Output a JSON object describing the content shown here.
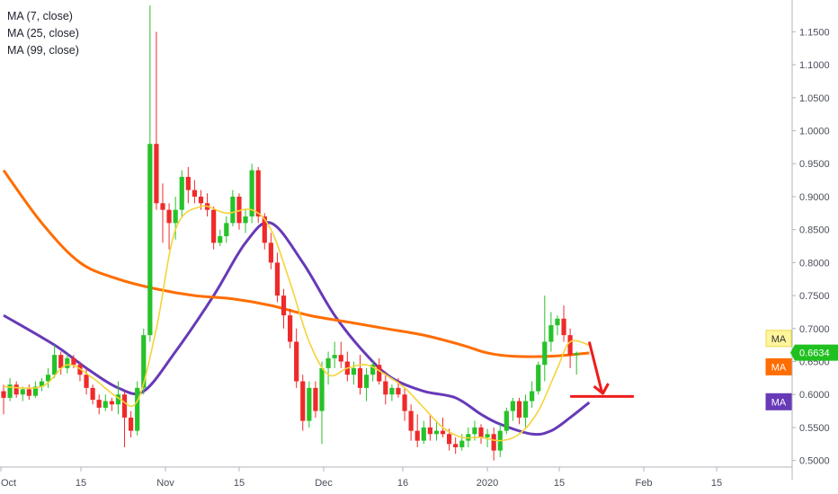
{
  "legend": [
    {
      "label": "MA (7, close)",
      "color": "#f5d33a"
    },
    {
      "label": "MA (25, close)",
      "color": "#ff6d00"
    },
    {
      "label": "MA (99, close)",
      "color": "#673ab7"
    }
  ],
  "chart_data": {
    "type": "candlestick",
    "title": "",
    "xlabel": "",
    "ylabel": "",
    "x_ticks": [
      "Oct",
      "15",
      "Nov",
      "15",
      "Dec",
      "16",
      "2020",
      "15",
      "Feb",
      "15"
    ],
    "y_ticks": [
      "0.5000",
      "0.5500",
      "0.6000",
      "0.6500",
      "0.7000",
      "0.7500",
      "0.8000",
      "0.8500",
      "0.9000",
      "0.9500",
      "1.0000",
      "1.0500",
      "1.1000",
      "1.1500"
    ],
    "ylim": [
      0.49,
      1.19
    ],
    "grid": false,
    "colors": {
      "up": "#26c229",
      "down": "#ef2a2a",
      "ma7": "#f5d33a",
      "ma25": "#ff6d00",
      "ma99": "#673ab7",
      "annotation": "#ee1c1c"
    },
    "candles": [
      [
        0.605,
        0.615,
        0.57,
        0.595
      ],
      [
        0.595,
        0.625,
        0.59,
        0.615
      ],
      [
        0.615,
        0.62,
        0.595,
        0.6
      ],
      [
        0.6,
        0.612,
        0.59,
        0.608
      ],
      [
        0.608,
        0.615,
        0.592,
        0.598
      ],
      [
        0.598,
        0.62,
        0.595,
        0.612
      ],
      [
        0.612,
        0.625,
        0.605,
        0.62
      ],
      [
        0.62,
        0.64,
        0.61,
        0.63
      ],
      [
        0.63,
        0.675,
        0.625,
        0.66
      ],
      [
        0.66,
        0.665,
        0.63,
        0.64
      ],
      [
        0.64,
        0.662,
        0.632,
        0.655
      ],
      [
        0.655,
        0.66,
        0.64,
        0.645
      ],
      [
        0.645,
        0.65,
        0.62,
        0.63
      ],
      [
        0.63,
        0.64,
        0.6,
        0.61
      ],
      [
        0.61,
        0.615,
        0.585,
        0.592
      ],
      [
        0.592,
        0.6,
        0.57,
        0.58
      ],
      [
        0.58,
        0.6,
        0.575,
        0.59
      ],
      [
        0.59,
        0.595,
        0.575,
        0.585
      ],
      [
        0.585,
        0.62,
        0.57,
        0.6
      ],
      [
        0.6,
        0.605,
        0.52,
        0.565
      ],
      [
        0.565,
        0.575,
        0.535,
        0.545
      ],
      [
        0.545,
        0.62,
        0.538,
        0.61
      ],
      [
        0.61,
        0.7,
        0.6,
        0.69
      ],
      [
        0.69,
        1.19,
        0.68,
        0.98
      ],
      [
        0.98,
        1.15,
        0.88,
        0.89
      ],
      [
        0.89,
        0.92,
        0.83,
        0.88
      ],
      [
        0.88,
        0.89,
        0.82,
        0.86
      ],
      [
        0.86,
        0.9,
        0.835,
        0.88
      ],
      [
        0.88,
        0.94,
        0.87,
        0.93
      ],
      [
        0.93,
        0.945,
        0.89,
        0.91
      ],
      [
        0.91,
        0.925,
        0.89,
        0.9
      ],
      [
        0.9,
        0.91,
        0.88,
        0.89
      ],
      [
        0.89,
        0.905,
        0.87,
        0.88
      ],
      [
        0.88,
        0.885,
        0.82,
        0.83
      ],
      [
        0.83,
        0.85,
        0.825,
        0.84
      ],
      [
        0.84,
        0.87,
        0.83,
        0.86
      ],
      [
        0.86,
        0.91,
        0.855,
        0.9
      ],
      [
        0.9,
        0.905,
        0.85,
        0.86
      ],
      [
        0.86,
        0.88,
        0.845,
        0.87
      ],
      [
        0.87,
        0.95,
        0.86,
        0.94
      ],
      [
        0.94,
        0.945,
        0.86,
        0.87
      ],
      [
        0.87,
        0.875,
        0.82,
        0.83
      ],
      [
        0.83,
        0.845,
        0.79,
        0.8
      ],
      [
        0.8,
        0.815,
        0.74,
        0.75
      ],
      [
        0.75,
        0.76,
        0.7,
        0.72
      ],
      [
        0.72,
        0.73,
        0.67,
        0.68
      ],
      [
        0.68,
        0.7,
        0.61,
        0.62
      ],
      [
        0.62,
        0.63,
        0.545,
        0.56
      ],
      [
        0.56,
        0.62,
        0.55,
        0.61
      ],
      [
        0.61,
        0.62,
        0.565,
        0.575
      ],
      [
        0.575,
        0.65,
        0.525,
        0.64
      ],
      [
        0.64,
        0.665,
        0.615,
        0.655
      ],
      [
        0.655,
        0.68,
        0.64,
        0.66
      ],
      [
        0.66,
        0.68,
        0.64,
        0.65
      ],
      [
        0.65,
        0.665,
        0.62,
        0.63
      ],
      [
        0.63,
        0.65,
        0.615,
        0.64
      ],
      [
        0.64,
        0.66,
        0.6,
        0.61
      ],
      [
        0.61,
        0.64,
        0.59,
        0.63
      ],
      [
        0.63,
        0.65,
        0.62,
        0.645
      ],
      [
        0.645,
        0.655,
        0.615,
        0.62
      ],
      [
        0.62,
        0.635,
        0.585,
        0.6
      ],
      [
        0.6,
        0.615,
        0.59,
        0.61
      ],
      [
        0.61,
        0.625,
        0.595,
        0.6
      ],
      [
        0.6,
        0.61,
        0.56,
        0.575
      ],
      [
        0.575,
        0.585,
        0.53,
        0.545
      ],
      [
        0.545,
        0.57,
        0.52,
        0.53
      ],
      [
        0.53,
        0.56,
        0.525,
        0.55
      ],
      [
        0.55,
        0.57,
        0.53,
        0.54
      ],
      [
        0.54,
        0.56,
        0.53,
        0.545
      ],
      [
        0.545,
        0.565,
        0.535,
        0.54
      ],
      [
        0.54,
        0.548,
        0.515,
        0.525
      ],
      [
        0.525,
        0.535,
        0.51,
        0.52
      ],
      [
        0.52,
        0.54,
        0.515,
        0.53
      ],
      [
        0.53,
        0.55,
        0.52,
        0.54
      ],
      [
        0.54,
        0.56,
        0.53,
        0.55
      ],
      [
        0.55,
        0.555,
        0.525,
        0.535
      ],
      [
        0.535,
        0.548,
        0.52,
        0.54
      ],
      [
        0.54,
        0.55,
        0.5,
        0.515
      ],
      [
        0.515,
        0.555,
        0.505,
        0.545
      ],
      [
        0.545,
        0.58,
        0.54,
        0.575
      ],
      [
        0.575,
        0.595,
        0.56,
        0.59
      ],
      [
        0.59,
        0.595,
        0.555,
        0.565
      ],
      [
        0.565,
        0.6,
        0.55,
        0.59
      ],
      [
        0.59,
        0.62,
        0.58,
        0.605
      ],
      [
        0.605,
        0.65,
        0.6,
        0.645
      ],
      [
        0.645,
        0.75,
        0.62,
        0.68
      ],
      [
        0.68,
        0.725,
        0.665,
        0.705
      ],
      [
        0.705,
        0.72,
        0.69,
        0.715
      ],
      [
        0.715,
        0.735,
        0.68,
        0.69
      ],
      [
        0.69,
        0.7,
        0.64,
        0.66
      ],
      [
        0.66,
        0.665,
        0.63,
        0.663
      ]
    ],
    "ma99": {
      "start_value": 0.72,
      "points": [
        [
          0,
          0.72
        ],
        [
          8,
          0.675
        ],
        [
          13,
          0.64
        ],
        [
          18,
          0.61
        ],
        [
          22,
          0.605
        ],
        [
          27,
          0.665
        ],
        [
          33,
          0.75
        ],
        [
          38,
          0.83
        ],
        [
          42,
          0.86
        ],
        [
          47,
          0.8
        ],
        [
          52,
          0.72
        ],
        [
          57,
          0.66
        ],
        [
          61,
          0.625
        ],
        [
          66,
          0.605
        ],
        [
          71,
          0.595
        ],
        [
          75,
          0.57
        ],
        [
          78,
          0.555
        ],
        [
          83,
          0.54
        ],
        [
          86,
          0.545
        ],
        [
          89,
          0.565
        ],
        [
          92,
          0.588
        ]
      ]
    },
    "ma25": {
      "points": [
        [
          0,
          0.94
        ],
        [
          6,
          0.86
        ],
        [
          12,
          0.8
        ],
        [
          18,
          0.775
        ],
        [
          24,
          0.76
        ],
        [
          30,
          0.75
        ],
        [
          36,
          0.745
        ],
        [
          42,
          0.735
        ],
        [
          48,
          0.72
        ],
        [
          54,
          0.71
        ],
        [
          60,
          0.7
        ],
        [
          66,
          0.69
        ],
        [
          72,
          0.675
        ],
        [
          76,
          0.663
        ],
        [
          80,
          0.658
        ],
        [
          86,
          0.658
        ],
        [
          92,
          0.663
        ]
      ]
    },
    "ma7": {
      "points": [
        [
          0,
          0.612
        ],
        [
          6,
          0.612
        ],
        [
          10,
          0.645
        ],
        [
          14,
          0.625
        ],
        [
          18,
          0.595
        ],
        [
          21,
          0.59
        ],
        [
          24,
          0.7
        ],
        [
          27,
          0.85
        ],
        [
          31,
          0.885
        ],
        [
          35,
          0.875
        ],
        [
          39,
          0.88
        ],
        [
          42,
          0.85
        ],
        [
          45,
          0.77
        ],
        [
          48,
          0.68
        ],
        [
          51,
          0.63
        ],
        [
          54,
          0.64
        ],
        [
          57,
          0.645
        ],
        [
          60,
          0.63
        ],
        [
          63,
          0.61
        ],
        [
          66,
          0.58
        ],
        [
          69,
          0.55
        ],
        [
          72,
          0.535
        ],
        [
          75,
          0.535
        ],
        [
          78,
          0.53
        ],
        [
          81,
          0.54
        ],
        [
          84,
          0.575
        ],
        [
          87,
          0.64
        ],
        [
          89,
          0.68
        ],
        [
          92,
          0.675
        ]
      ]
    },
    "current_price": "0.6634",
    "badges": [
      {
        "label": "MA",
        "value": 0.685,
        "bg": "#fff59d",
        "fg": "#333333",
        "border": "#e6d94a"
      },
      {
        "label": "MA",
        "value": 0.642,
        "bg": "#ff6d00",
        "fg": "#ffffff",
        "border": "#ff6d00"
      },
      {
        "label": "MA",
        "value": 0.589,
        "bg": "#673ab7",
        "fg": "#ffffff",
        "border": "#673ab7"
      }
    ],
    "annotation": {
      "type": "arrow-and-support-line",
      "arrow_from": [
        92,
        0.68
      ],
      "arrow_to": [
        94,
        0.603
      ],
      "line_level": 0.597,
      "line_from": 89,
      "line_to": 99
    }
  }
}
